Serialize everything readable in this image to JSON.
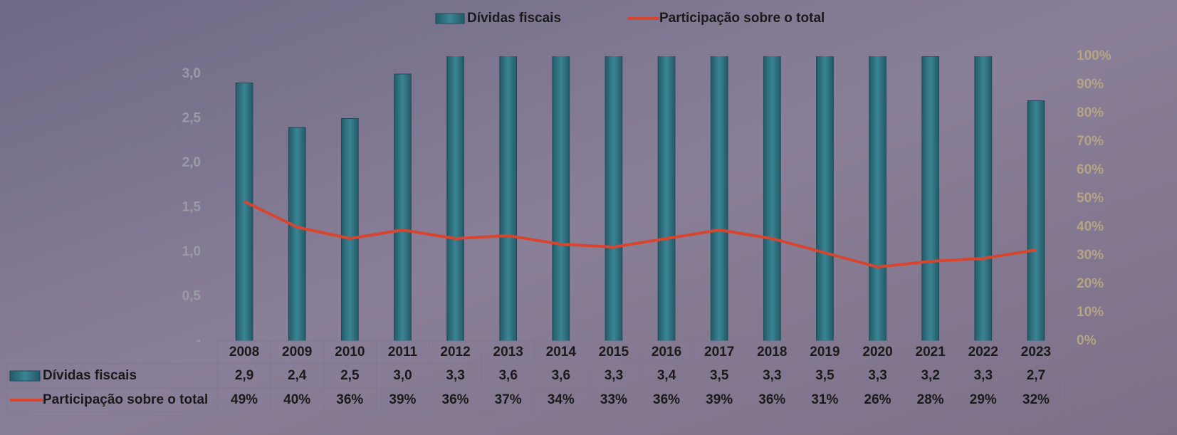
{
  "chart_data": {
    "type": "bar",
    "categories": [
      "2008",
      "2009",
      "2010",
      "2011",
      "2012",
      "2013",
      "2014",
      "2015",
      "2016",
      "2017",
      "2018",
      "2019",
      "2020",
      "2021",
      "2022",
      "2023"
    ],
    "series": [
      {
        "name": "Dívidas fiscais",
        "type": "bar",
        "color": "#2e6f80",
        "values": [
          2.9,
          2.4,
          2.5,
          3.0,
          3.3,
          3.6,
          3.6,
          3.3,
          3.4,
          3.5,
          3.3,
          3.5,
          3.3,
          3.2,
          3.3,
          2.7
        ],
        "value_labels": [
          "2,9",
          "2,4",
          "2,5",
          "3,0",
          "3,3",
          "3,6",
          "3,6",
          "3,3",
          "3,4",
          "3,5",
          "3,3",
          "3,5",
          "3,3",
          "3,2",
          "3,3",
          "2,7"
        ]
      },
      {
        "name": "Participação sobre o total",
        "type": "line",
        "axis": "y2",
        "color": "#d8452f",
        "values": [
          49,
          40,
          36,
          39,
          36,
          37,
          34,
          33,
          36,
          39,
          36,
          31,
          26,
          28,
          29,
          32
        ],
        "value_labels": [
          "49%",
          "40%",
          "36%",
          "39%",
          "36%",
          "37%",
          "34%",
          "33%",
          "36%",
          "39%",
          "36%",
          "31%",
          "26%",
          "28%",
          "29%",
          "32%"
        ]
      }
    ],
    "ylim": [
      0,
      3.2
    ],
    "yticks": [
      {
        "value": 0,
        "label": "-"
      },
      {
        "value": 0.5,
        "label": "0,5"
      },
      {
        "value": 1.0,
        "label": "1,0"
      },
      {
        "value": 1.5,
        "label": "1,5"
      },
      {
        "value": 2.0,
        "label": "2,0"
      },
      {
        "value": 2.5,
        "label": "2,5"
      },
      {
        "value": 3.0,
        "label": "3,0"
      }
    ],
    "y2lim": [
      0,
      100
    ],
    "y2ticks": [
      {
        "value": 0,
        "label": "0%"
      },
      {
        "value": 10,
        "label": "10%"
      },
      {
        "value": 20,
        "label": "20%"
      },
      {
        "value": 30,
        "label": "30%"
      },
      {
        "value": 40,
        "label": "40%"
      },
      {
        "value": 50,
        "label": "50%"
      },
      {
        "value": 60,
        "label": "60%"
      },
      {
        "value": 70,
        "label": "70%"
      },
      {
        "value": 80,
        "label": "80%"
      },
      {
        "value": 90,
        "label": "90%"
      },
      {
        "value": 100,
        "label": "100%"
      }
    ]
  }
}
